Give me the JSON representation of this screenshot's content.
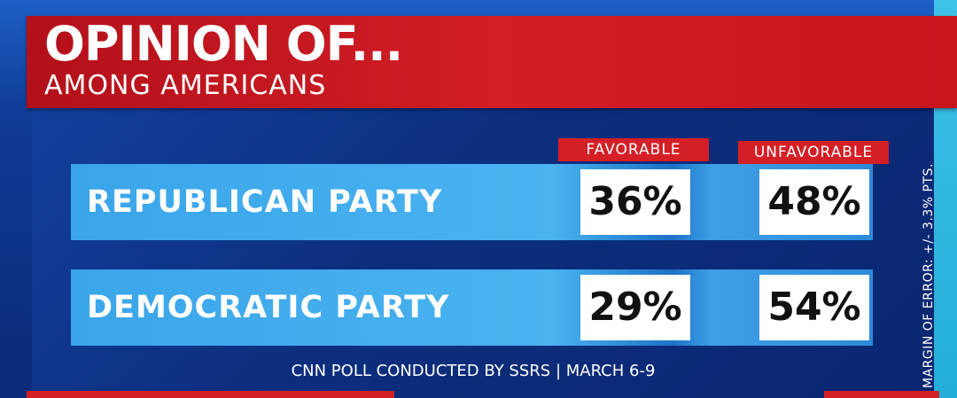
{
  "header": {
    "title": "OPINION OF...",
    "subtitle": "AMONG AMERICANS"
  },
  "chart_data": {
    "type": "table",
    "columns": [
      "FAVORABLE",
      "UNFAVORABLE"
    ],
    "rows": [
      {
        "label": "REPUBLICAN PARTY",
        "favorable": "36%",
        "unfavorable": "48%"
      },
      {
        "label": "DEMOCRATIC PARTY",
        "favorable": "29%",
        "unfavorable": "54%"
      }
    ]
  },
  "footer": {
    "source": "CNN POLL CONDUCTED BY SSRS | MARCH 6-9",
    "margin_of_error": "MARGIN OF ERROR: +/- 3.3% PTS."
  },
  "colors": {
    "red": "#d51f26",
    "row_blue": "#4ab3f0",
    "background": "#0b2a78"
  }
}
